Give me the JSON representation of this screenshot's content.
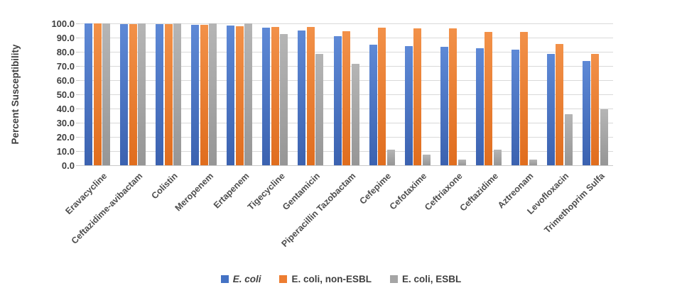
{
  "chart_data": {
    "type": "bar",
    "title": "",
    "xlabel": "",
    "ylabel": "Percent Susceptibility",
    "ylim": [
      0,
      100
    ],
    "ytick_labels": [
      "100.0",
      "90.0",
      "80.0",
      "70.0",
      "60.0",
      "50.0",
      "40.0",
      "30.0",
      "20.0",
      "10.0",
      "0.0"
    ],
    "grid": "horizontal-major",
    "legend_position": "bottom-center",
    "categories": [
      "Eravacycline",
      "Ceftazidime-avibactam",
      "Colistin",
      "Meropenem",
      "Ertapenem",
      "Tigecycline",
      "Gentamicin",
      "Piperacillin Tazobactam",
      "Cefepime",
      "Cefotaxime",
      "Ceftriaxone",
      "Ceftazidime",
      "Aztreonam",
      "Levofloxacin",
      "Trimethoprim Sulfa"
    ],
    "series": [
      {
        "name": "E. coli",
        "italic": true,
        "color": "#4472C4",
        "gradient": [
          "#5E89D6",
          "#3B62B0"
        ],
        "values": [
          100.0,
          99.6,
          99.5,
          99.1,
          98.4,
          96.9,
          95.0,
          91.1,
          85.0,
          84.0,
          83.5,
          82.6,
          81.7,
          78.7,
          73.3
        ]
      },
      {
        "name": "E. coli, non-ESBL",
        "italic": false,
        "color": "#ED7D31",
        "gradient": [
          "#F29149",
          "#E06D1E"
        ],
        "values": [
          100.0,
          99.4,
          99.3,
          98.9,
          98.2,
          97.6,
          97.7,
          94.4,
          97.0,
          96.6,
          96.3,
          94.2,
          94.1,
          85.4,
          78.6
        ]
      },
      {
        "name": "E. coli, ESBL",
        "italic": false,
        "color": "#A5A5A5",
        "gradient": [
          "#B5B5B5",
          "#969696"
        ],
        "values": [
          100.0,
          100.0,
          100.0,
          100.0,
          100.0,
          92.6,
          78.4,
          71.5,
          11.1,
          7.5,
          4.0,
          11.0,
          3.9,
          36.1,
          39.6
        ]
      }
    ],
    "colors": {
      "gridline": "#D9D9D9",
      "axis_text": "#404040"
    }
  }
}
